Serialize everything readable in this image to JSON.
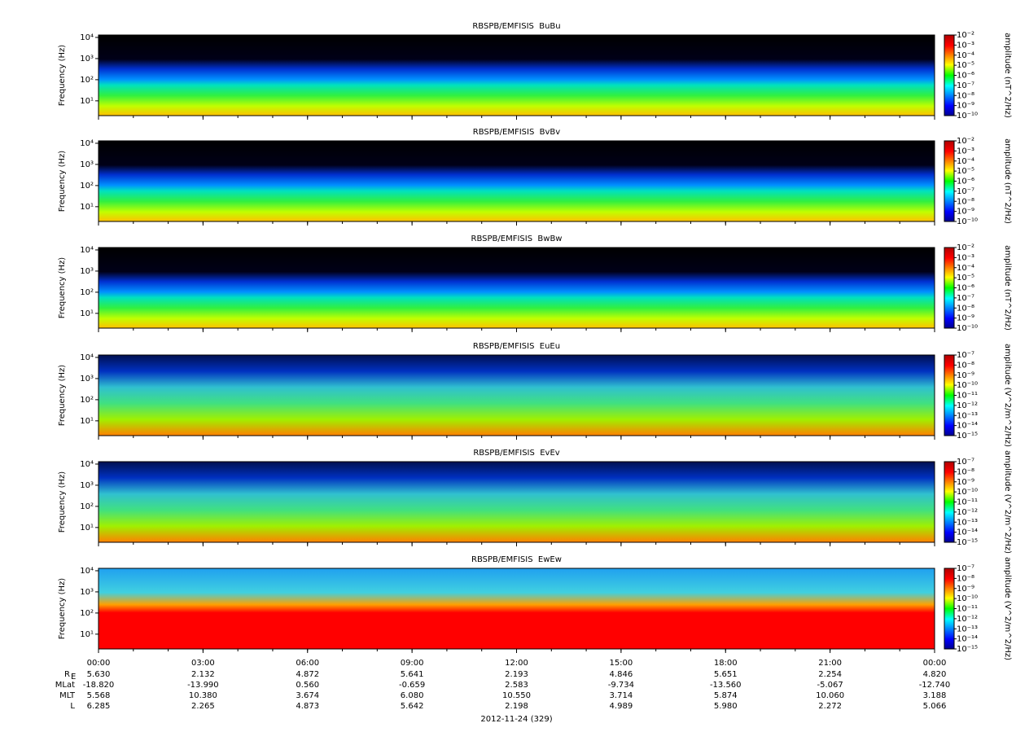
{
  "chart_data": [
    {
      "type": "spectrogram",
      "title": "RBSPB/EMFISIS  BuBu",
      "ylabel": "Frequency (Hz)",
      "log_y": true,
      "ylim": [
        2,
        13000
      ],
      "yticks": [
        {
          "value": 10,
          "label": "10¹"
        },
        {
          "value": 100,
          "label": "10²"
        },
        {
          "value": 1000,
          "label": "10³"
        },
        {
          "value": 10000,
          "label": "10⁴"
        }
      ],
      "zlabel": "amplitude (nT^2/Hz)",
      "zlim": [
        1e-10,
        0.01
      ],
      "zticks": [
        {
          "value": 0.01,
          "label": "10⁻²"
        },
        {
          "value": 0.001,
          "label": "10⁻³"
        },
        {
          "value": 0.0001,
          "label": "10⁻⁴"
        },
        {
          "value": 1e-05,
          "label": "10⁻⁵"
        },
        {
          "value": 1e-06,
          "label": "10⁻⁶"
        },
        {
          "value": 1e-07,
          "label": "10⁻⁷"
        },
        {
          "value": 1e-08,
          "label": "10⁻⁸"
        },
        {
          "value": 1e-09,
          "label": "10⁻⁹"
        },
        {
          "value": 1e-10,
          "label": "10⁻¹⁰"
        }
      ]
    },
    {
      "type": "spectrogram",
      "title": "RBSPB/EMFISIS  BvBv",
      "ylabel": "Frequency (Hz)",
      "log_y": true,
      "ylim": [
        2,
        13000
      ],
      "yticks": [
        {
          "value": 10,
          "label": "10¹"
        },
        {
          "value": 100,
          "label": "10²"
        },
        {
          "value": 1000,
          "label": "10³"
        },
        {
          "value": 10000,
          "label": "10⁴"
        }
      ],
      "zlabel": "amplitude (nT^2/Hz)",
      "zlim": [
        1e-10,
        0.01
      ],
      "zticks": [
        {
          "value": 0.01,
          "label": "10⁻²"
        },
        {
          "value": 0.001,
          "label": "10⁻³"
        },
        {
          "value": 0.0001,
          "label": "10⁻⁴"
        },
        {
          "value": 1e-05,
          "label": "10⁻⁵"
        },
        {
          "value": 1e-06,
          "label": "10⁻⁶"
        },
        {
          "value": 1e-07,
          "label": "10⁻⁷"
        },
        {
          "value": 1e-08,
          "label": "10⁻⁸"
        },
        {
          "value": 1e-09,
          "label": "10⁻⁹"
        },
        {
          "value": 1e-10,
          "label": "10⁻¹⁰"
        }
      ]
    },
    {
      "type": "spectrogram",
      "title": "RBSPB/EMFISIS  BwBw",
      "ylabel": "Frequency (Hz)",
      "log_y": true,
      "ylim": [
        2,
        13000
      ],
      "yticks": [
        {
          "value": 10,
          "label": "10¹"
        },
        {
          "value": 100,
          "label": "10²"
        },
        {
          "value": 1000,
          "label": "10³"
        },
        {
          "value": 10000,
          "label": "10⁴"
        }
      ],
      "zlabel": "amplitude (nT^2/Hz)",
      "zlim": [
        1e-10,
        0.01
      ],
      "zticks": [
        {
          "value": 0.01,
          "label": "10⁻²"
        },
        {
          "value": 0.001,
          "label": "10⁻³"
        },
        {
          "value": 0.0001,
          "label": "10⁻⁴"
        },
        {
          "value": 1e-05,
          "label": "10⁻⁵"
        },
        {
          "value": 1e-06,
          "label": "10⁻⁶"
        },
        {
          "value": 1e-07,
          "label": "10⁻⁷"
        },
        {
          "value": 1e-08,
          "label": "10⁻⁸"
        },
        {
          "value": 1e-09,
          "label": "10⁻⁹"
        },
        {
          "value": 1e-10,
          "label": "10⁻¹⁰"
        }
      ]
    },
    {
      "type": "spectrogram",
      "title": "RBSPB/EMFISIS  EuEu",
      "ylabel": "Frequency (Hz)",
      "log_y": true,
      "ylim": [
        2,
        13000
      ],
      "yticks": [
        {
          "value": 10,
          "label": "10¹"
        },
        {
          "value": 100,
          "label": "10²"
        },
        {
          "value": 1000,
          "label": "10³"
        },
        {
          "value": 10000,
          "label": "10⁴"
        }
      ],
      "zlabel": "amplitude (V^2/m^2/Hz)",
      "zlim": [
        1e-15,
        1e-07
      ],
      "zticks": [
        {
          "value": 1e-07,
          "label": "10⁻⁷"
        },
        {
          "value": 1e-08,
          "label": "10⁻⁸"
        },
        {
          "value": 1e-09,
          "label": "10⁻⁹"
        },
        {
          "value": 1e-10,
          "label": "10⁻¹⁰"
        },
        {
          "value": 1e-11,
          "label": "10⁻¹¹"
        },
        {
          "value": 1e-12,
          "label": "10⁻¹²"
        },
        {
          "value": 1e-13,
          "label": "10⁻¹³"
        },
        {
          "value": 1e-14,
          "label": "10⁻¹⁴"
        },
        {
          "value": 1e-15,
          "label": "10⁻¹⁵"
        }
      ]
    },
    {
      "type": "spectrogram",
      "title": "RBSPB/EMFISIS  EvEv",
      "ylabel": "Frequency (Hz)",
      "log_y": true,
      "ylim": [
        2,
        13000
      ],
      "yticks": [
        {
          "value": 10,
          "label": "10¹"
        },
        {
          "value": 100,
          "label": "10²"
        },
        {
          "value": 1000,
          "label": "10³"
        },
        {
          "value": 10000,
          "label": "10⁴"
        }
      ],
      "zlabel": "amplitude (V^2/m^2/Hz)",
      "zlim": [
        1e-15,
        1e-07
      ],
      "zticks": [
        {
          "value": 1e-07,
          "label": "10⁻⁷"
        },
        {
          "value": 1e-08,
          "label": "10⁻⁸"
        },
        {
          "value": 1e-09,
          "label": "10⁻⁹"
        },
        {
          "value": 1e-10,
          "label": "10⁻¹⁰"
        },
        {
          "value": 1e-11,
          "label": "10⁻¹¹"
        },
        {
          "value": 1e-12,
          "label": "10⁻¹²"
        },
        {
          "value": 1e-13,
          "label": "10⁻¹³"
        },
        {
          "value": 1e-14,
          "label": "10⁻¹⁴"
        },
        {
          "value": 1e-15,
          "label": "10⁻¹⁵"
        }
      ]
    },
    {
      "type": "spectrogram",
      "title": "RBSPB/EMFISIS  EwEw",
      "ylabel": "Frequency (Hz)",
      "log_y": true,
      "ylim": [
        2,
        13000
      ],
      "yticks": [
        {
          "value": 10,
          "label": "10¹"
        },
        {
          "value": 100,
          "label": "10²"
        },
        {
          "value": 1000,
          "label": "10³"
        },
        {
          "value": 10000,
          "label": "10⁴"
        }
      ],
      "zlabel": "amplitude (V^2/m^2/Hz)",
      "zlim": [
        1e-15,
        1e-07
      ],
      "zticks": [
        {
          "value": 1e-07,
          "label": "10⁻⁷"
        },
        {
          "value": 1e-08,
          "label": "10⁻⁸"
        },
        {
          "value": 1e-09,
          "label": "10⁻⁹"
        },
        {
          "value": 1e-10,
          "label": "10⁻¹⁰"
        },
        {
          "value": 1e-11,
          "label": "10⁻¹¹"
        },
        {
          "value": 1e-12,
          "label": "10⁻¹²"
        },
        {
          "value": 1e-13,
          "label": "10⁻¹³"
        },
        {
          "value": 1e-14,
          "label": "10⁻¹⁴"
        },
        {
          "value": 1e-15,
          "label": "10⁻¹⁵"
        }
      ]
    }
  ],
  "x_axis": {
    "xlim": [
      0,
      24
    ],
    "xticks": [
      {
        "value": 0,
        "label": "00:00"
      },
      {
        "value": 3,
        "label": "03:00"
      },
      {
        "value": 6,
        "label": "06:00"
      },
      {
        "value": 9,
        "label": "09:00"
      },
      {
        "value": 12,
        "label": "12:00"
      },
      {
        "value": 15,
        "label": "15:00"
      },
      {
        "value": 18,
        "label": "18:00"
      },
      {
        "value": 21,
        "label": "21:00"
      },
      {
        "value": 24,
        "label": "00:00"
      }
    ],
    "xlabel": "2012-11-24 (329)",
    "ephemeris": [
      {
        "label": "R",
        "sub": "E",
        "values": [
          "5.630",
          "2.132",
          "4.872",
          "5.641",
          "2.193",
          "4.846",
          "5.651",
          "2.254",
          "4.820"
        ]
      },
      {
        "label": "MLat",
        "values": [
          "-18.820",
          "-13.990",
          "0.560",
          "-0.659",
          "2.583",
          "-9.734",
          "-13.560",
          "-5.067",
          "-12.740"
        ]
      },
      {
        "label": "MLT",
        "values": [
          "5.568",
          "10.380",
          "3.674",
          "6.080",
          "10.550",
          "3.714",
          "5.874",
          "10.060",
          "3.188"
        ]
      },
      {
        "label": "L",
        "values": [
          "6.285",
          "2.265",
          "4.873",
          "5.642",
          "2.198",
          "4.989",
          "5.980",
          "2.272",
          "5.066"
        ]
      }
    ]
  }
}
